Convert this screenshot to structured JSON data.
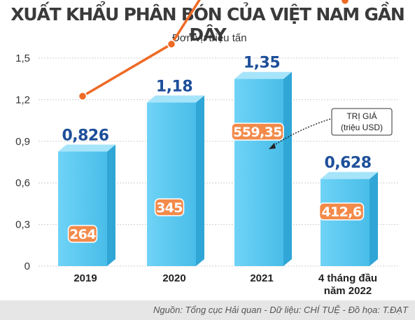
{
  "header": {
    "title": "XUẤT KHẨU PHÂN BÓN CỦA VIỆT NAM GẦN ĐÂY",
    "unit": "Đơn vị: triệu tấn"
  },
  "chart_data": {
    "type": "bar",
    "title": "XUẤT KHẨU PHÂN BÓN CỦA VIỆT NAM GẦN ĐÂY",
    "ylabel": "Đơn vị: triệu tấn",
    "ylim": [
      0,
      1.5
    ],
    "yticks": [
      "0",
      "0,3",
      "0,6",
      "0,9",
      "1,2",
      "1,5"
    ],
    "yticks_values": [
      0,
      0.3,
      0.6,
      0.9,
      1.2,
      1.5
    ],
    "grid": true,
    "categories": [
      [
        "2019"
      ],
      [
        "2020"
      ],
      [
        "2021"
      ],
      [
        "4 tháng đầu",
        "năm 2022"
      ]
    ],
    "series": [
      {
        "type": "bar",
        "values": [
          0.826,
          1.18,
          1.35,
          0.628
        ],
        "labels": [
          "0,826",
          "1,18",
          "1,35",
          "0,628"
        ],
        "color": "#5ec8ee"
      },
      {
        "type": "line",
        "values": [
          264,
          345,
          559.35,
          412.6
        ],
        "labels": [
          "264",
          "345",
          "559,35",
          "412,6"
        ],
        "color": "#ee6a25"
      }
    ],
    "annotation": {
      "lines": [
        "TRỊ GIÁ",
        "(triệu USD)"
      ]
    }
  },
  "footer": {
    "source": "Nguồn: Tổng cục Hải quan - Dữ liệu: CHÍ TUỆ - Đồ họa: T.ĐẠT"
  }
}
